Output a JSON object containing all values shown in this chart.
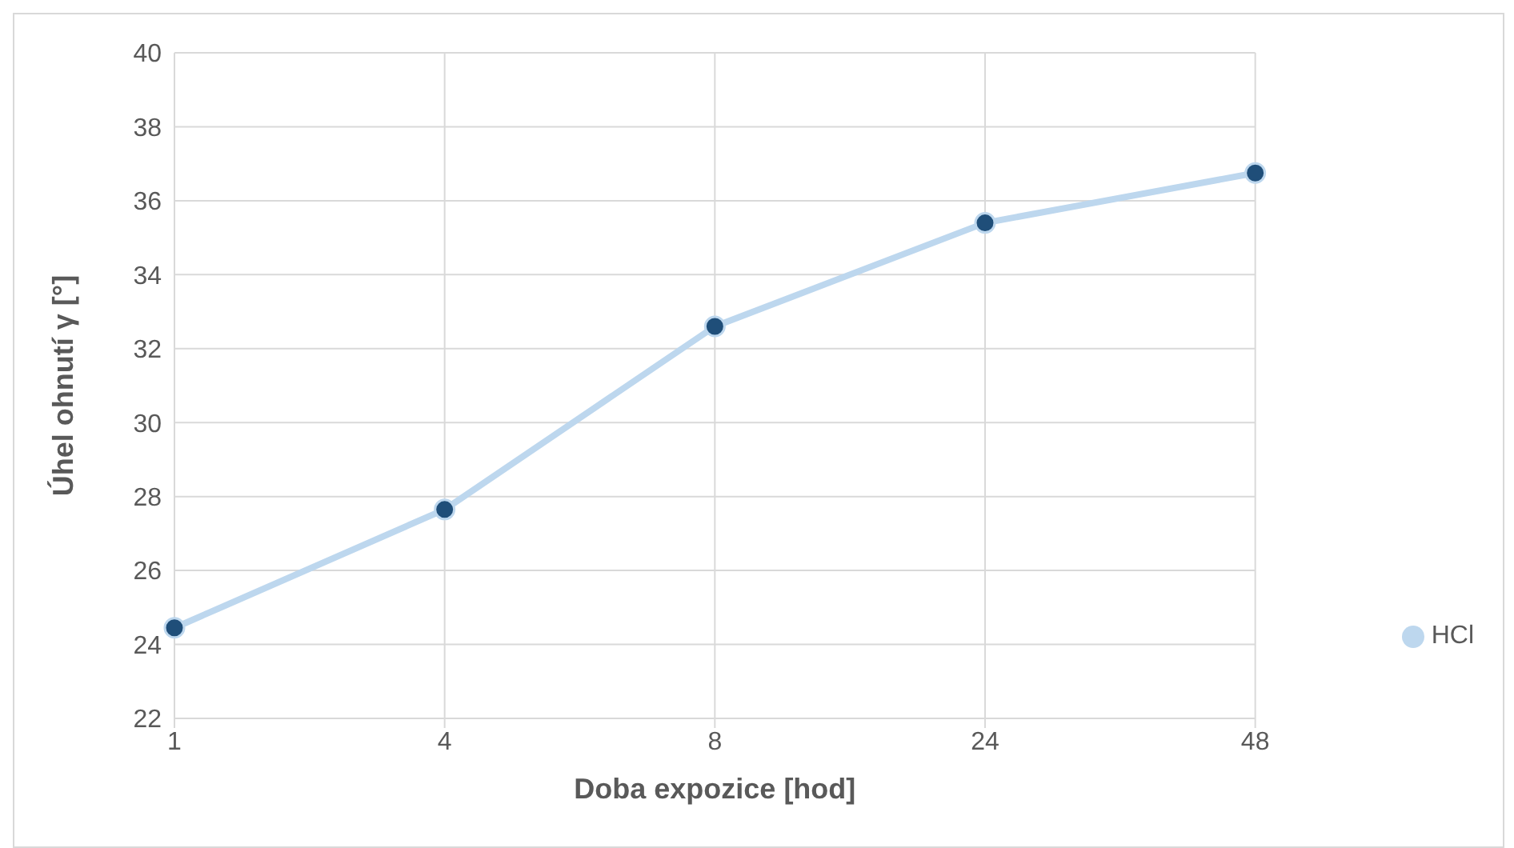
{
  "chart_data": {
    "type": "line",
    "xlabel": "Doba expozice [hod]",
    "ylabel": "Úhel ohnutí γ [°]",
    "categories": [
      "1",
      "4",
      "8",
      "24",
      "48"
    ],
    "series": [
      {
        "name": "HCl",
        "color": "#bdd7ee",
        "values": [
          24.45,
          27.65,
          32.6,
          35.4,
          36.75
        ]
      }
    ],
    "ylim": [
      22,
      40
    ],
    "yticks": [
      22,
      24,
      26,
      28,
      30,
      32,
      34,
      36,
      38,
      40
    ],
    "grid": true,
    "legend": "right",
    "marker": "circle",
    "line_style": "solid"
  }
}
